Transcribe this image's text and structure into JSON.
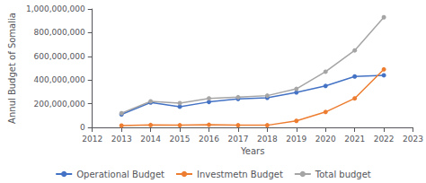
{
  "chart_data": {
    "type": "line",
    "x": [
      2013,
      2014,
      2015,
      2016,
      2017,
      2018,
      2019,
      2020,
      2021,
      2022
    ],
    "series": [
      {
        "name": "Operational Budget",
        "color": "#4472C4",
        "marker": "circle",
        "values": [
          110000000,
          210000000,
          175000000,
          215000000,
          240000000,
          250000000,
          295000000,
          350000000,
          430000000,
          440000000
        ]
      },
      {
        "name": "Investmetn Budget",
        "color": "#ED7D31",
        "marker": "circle",
        "values": [
          15000000,
          20000000,
          18000000,
          22000000,
          18000000,
          18000000,
          55000000,
          130000000,
          245000000,
          490000000
        ]
      },
      {
        "name": "Total budget",
        "color": "#A5A5A5",
        "marker": "circle",
        "values": [
          120000000,
          220000000,
          205000000,
          245000000,
          255000000,
          268000000,
          325000000,
          470000000,
          650000000,
          930000000
        ]
      }
    ],
    "xlabel": "Years",
    "ylabel": "Annul Budget of Somalia",
    "xlim": [
      2012,
      2023
    ],
    "xticks": [
      2012,
      2013,
      2014,
      2015,
      2016,
      2017,
      2018,
      2019,
      2020,
      2021,
      2022,
      2023
    ],
    "ylim": [
      0,
      1000000000
    ],
    "yticks": [
      0,
      {
        "value": 200000000,
        "label": "200,000,000"
      },
      {
        "value": 400000000,
        "label": "400,000,000"
      },
      {
        "value": 600000000,
        "label": "600,000,000"
      },
      {
        "value": 800000000,
        "label": "800,000,000"
      },
      {
        "value": 1000000000,
        "label": "1,000,000,000"
      }
    ],
    "grid": false,
    "legend": "bottom"
  }
}
